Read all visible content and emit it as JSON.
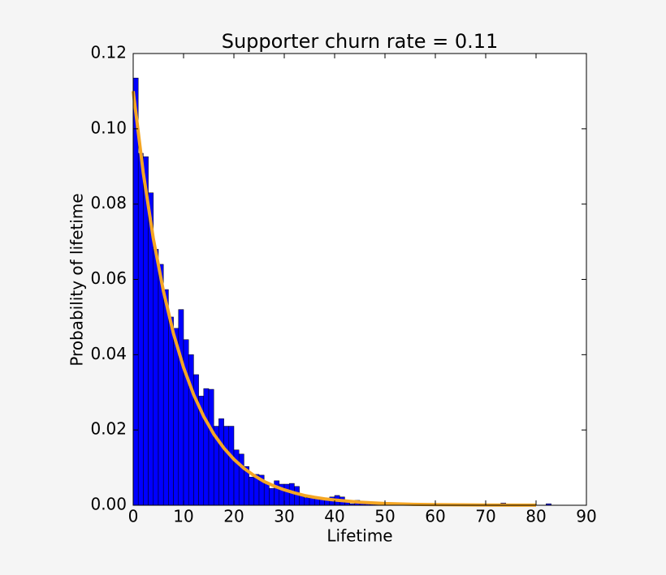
{
  "chart_data": {
    "type": "histogram",
    "title": "Supporter churn rate = 0.11",
    "xlabel": "Lifetime",
    "ylabel": "Probability of lifetime",
    "color": "#0000ff",
    "bins": [
      0,
      1,
      2,
      3,
      4,
      5,
      6,
      7,
      8,
      9,
      10,
      11,
      12,
      13,
      14,
      15,
      16,
      17,
      18,
      19,
      20,
      21,
      22,
      23,
      24,
      25,
      26,
      27,
      28,
      29,
      30,
      31,
      32,
      33,
      34,
      35,
      36,
      37,
      38,
      39,
      40,
      41,
      42,
      43,
      44,
      45,
      46,
      47,
      48,
      49,
      50,
      51,
      52,
      53,
      54,
      55,
      56,
      57,
      58,
      59,
      60,
      61,
      62,
      63,
      64,
      65,
      66,
      67,
      68,
      69,
      70,
      71,
      72,
      73,
      74,
      75,
      76,
      77,
      78,
      79,
      80,
      81,
      82,
      83,
      84
    ],
    "counts": [
      0.1135,
      0.0935,
      0.0926,
      0.083,
      0.068,
      0.064,
      0.0573,
      0.05,
      0.047,
      0.052,
      0.044,
      0.04,
      0.0347,
      0.029,
      0.031,
      0.0308,
      0.021,
      0.023,
      0.021,
      0.021,
      0.0147,
      0.0136,
      0.0103,
      0.0075,
      0.0082,
      0.008,
      0.006,
      0.0045,
      0.0065,
      0.0056,
      0.0056,
      0.0058,
      0.005,
      0.0028,
      0.002,
      0.0024,
      0.0022,
      0.0018,
      0.0015,
      0.0022,
      0.0026,
      0.0022,
      0.0008,
      0.0004,
      0.0013,
      0.0006,
      0.0004,
      0.0009,
      0.0004,
      0.0002,
      0.0002,
      0.0002,
      0,
      0.0002,
      0,
      0.0002,
      0,
      0,
      0,
      0,
      0,
      0,
      0,
      0,
      0,
      0,
      0,
      0,
      0,
      0,
      0,
      0,
      0,
      0.0006,
      0,
      0,
      0,
      0,
      0,
      0,
      0,
      0,
      0.0004,
      0
    ],
    "curve": {
      "type": "line",
      "color": "#f5a623",
      "x": [
        0,
        2,
        4,
        6,
        8,
        10,
        12,
        14,
        16,
        18,
        20,
        22,
        24,
        26,
        28,
        30,
        32,
        34,
        36,
        38,
        40,
        45,
        50,
        55,
        60,
        70,
        80
      ],
      "values": [
        0.11,
        0.0883,
        0.0708,
        0.0569,
        0.0456,
        0.0366,
        0.0294,
        0.0236,
        0.0189,
        0.0152,
        0.0122,
        0.0098,
        0.0079,
        0.0063,
        0.0051,
        0.0041,
        0.0033,
        0.0026,
        0.0021,
        0.0017,
        0.0014,
        0.0008,
        0.00045,
        0.00026,
        0.00015,
        5e-05,
        2e-05
      ]
    },
    "xlim": [
      0,
      90
    ],
    "ylim": [
      0,
      0.12
    ],
    "xticks": [
      0,
      10,
      20,
      30,
      40,
      50,
      60,
      70,
      80,
      90
    ],
    "yticks": [
      {
        "value": 0,
        "label": "0.00"
      },
      0.02,
      0.04,
      0.06,
      0.08,
      {
        "value": 0.1,
        "label": "0.10"
      },
      0.12
    ]
  }
}
